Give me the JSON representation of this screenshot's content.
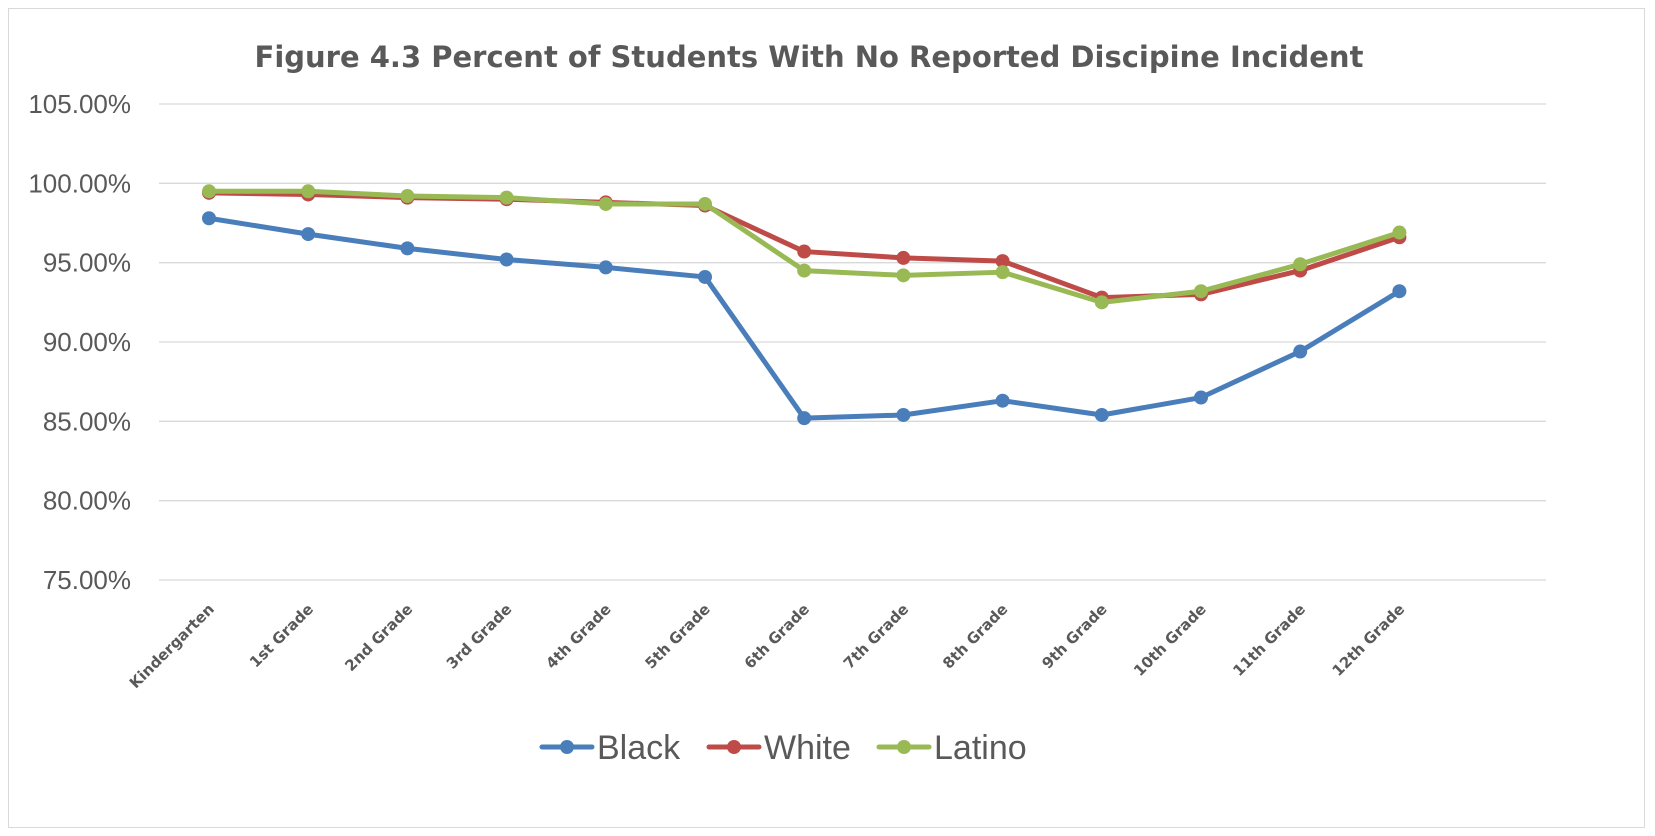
{
  "chart_data": {
    "type": "line",
    "title": "Figure 4.3 Percent of Students With No Reported Discipine Incident",
    "xlabel": "",
    "ylabel": "",
    "ylim": [
      75,
      105
    ],
    "y_ticks": [
      "105.00%",
      "100.00%",
      "95.00%",
      "90.00%",
      "85.00%",
      "80.00%",
      "75.00%"
    ],
    "y_tick_values": [
      105,
      100,
      95,
      90,
      85,
      80,
      75
    ],
    "grid": true,
    "legend_position": "bottom",
    "categories": [
      "Kindergarten",
      "1st Grade",
      "2nd Grade",
      "3rd Grade",
      "4th Grade",
      "5th Grade",
      "6th Grade",
      "7th Grade",
      "8th Grade",
      "9th Grade",
      "10th Grade",
      "11th Grade",
      "12th Grade"
    ],
    "series": [
      {
        "name": "Black",
        "color": "#4a7ebb",
        "values": [
          97.8,
          96.8,
          95.9,
          95.2,
          94.7,
          94.1,
          85.2,
          85.4,
          86.3,
          85.4,
          86.5,
          89.4,
          93.2
        ]
      },
      {
        "name": "White",
        "color": "#be4b48",
        "values": [
          99.4,
          99.3,
          99.1,
          99.0,
          98.8,
          98.6,
          95.7,
          95.3,
          95.1,
          92.8,
          93.0,
          94.5,
          96.6
        ]
      },
      {
        "name": "Latino",
        "color": "#98b954",
        "values": [
          99.5,
          99.5,
          99.2,
          99.1,
          98.7,
          98.7,
          94.5,
          94.2,
          94.4,
          92.5,
          93.2,
          94.9,
          96.9
        ]
      }
    ]
  }
}
